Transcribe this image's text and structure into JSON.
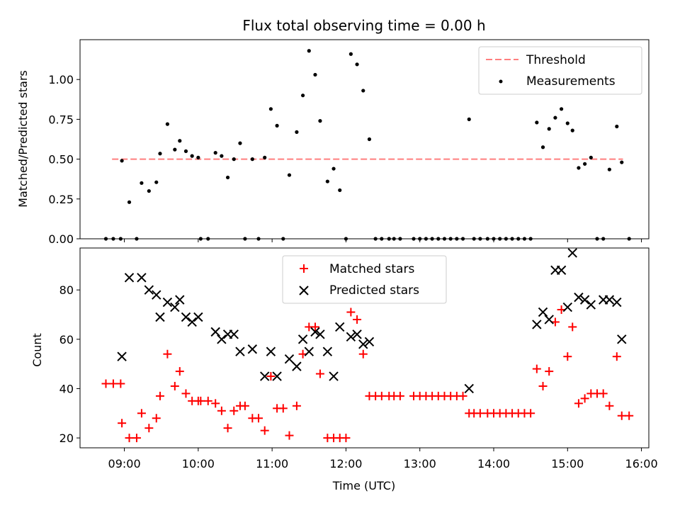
{
  "title": "Flux total observing time = 0.00 h",
  "chart_data": [
    {
      "type": "scatter",
      "ylabel": "Matched/Predicted stars",
      "xlabel": "",
      "xlim": [
        "08:24",
        "16:06"
      ],
      "ylim": [
        0,
        1.25
      ],
      "yticks": [
        0.0,
        0.25,
        0.5,
        0.75,
        1.0
      ],
      "ytick_labels": [
        "0.00",
        "0.25",
        "0.50",
        "0.75",
        "1.00"
      ],
      "legend_position": "upper right",
      "threshold": {
        "name": "Threshold",
        "y": 0.5,
        "x_start": "08:50",
        "x_end": "15:45",
        "color": "#ff7f7f"
      },
      "series": [
        {
          "name": "Measurements",
          "color": "#000000",
          "marker": "dot",
          "points": [
            [
              "08:45",
              0.0
            ],
            [
              "08:51",
              0.0
            ],
            [
              "08:57",
              0.0
            ],
            [
              "08:58",
              0.49
            ],
            [
              "09:04",
              0.23
            ],
            [
              "09:10",
              0.0
            ],
            [
              "09:14",
              0.35
            ],
            [
              "09:20",
              0.3
            ],
            [
              "09:26",
              0.355
            ],
            [
              "09:29",
              0.535
            ],
            [
              "09:35",
              0.72
            ],
            [
              "09:41",
              0.56
            ],
            [
              "09:45",
              0.615
            ],
            [
              "09:50",
              0.55
            ],
            [
              "09:55",
              0.52
            ],
            [
              "10:00",
              0.51
            ],
            [
              "10:02",
              0.0
            ],
            [
              "10:08",
              0.0
            ],
            [
              "10:14",
              0.54
            ],
            [
              "10:19",
              0.52
            ],
            [
              "10:24",
              0.385
            ],
            [
              "10:29",
              0.5
            ],
            [
              "10:34",
              0.6
            ],
            [
              "10:38",
              0.0
            ],
            [
              "10:44",
              0.5
            ],
            [
              "10:49",
              0.0
            ],
            [
              "10:54",
              0.51
            ],
            [
              "10:59",
              0.815
            ],
            [
              "11:04",
              0.71
            ],
            [
              "11:09",
              0.0
            ],
            [
              "11:14",
              0.4
            ],
            [
              "11:20",
              0.67
            ],
            [
              "11:25",
              0.9
            ],
            [
              "11:30",
              1.18
            ],
            [
              "11:35",
              1.03
            ],
            [
              "11:39",
              0.74
            ],
            [
              "11:45",
              0.36
            ],
            [
              "11:50",
              0.44
            ],
            [
              "11:55",
              0.305
            ],
            [
              "12:00",
              0.0
            ],
            [
              "12:04",
              1.16
            ],
            [
              "12:09",
              1.095
            ],
            [
              "12:14",
              0.93
            ],
            [
              "12:19",
              0.625
            ],
            [
              "12:24",
              0.0
            ],
            [
              "12:29",
              0.0
            ],
            [
              "12:35",
              0.0
            ],
            [
              "12:39",
              0.0
            ],
            [
              "12:44",
              0.0
            ],
            [
              "12:55",
              0.0
            ],
            [
              "13:00",
              0.0
            ],
            [
              "13:05",
              0.0
            ],
            [
              "13:10",
              0.0
            ],
            [
              "13:15",
              0.0
            ],
            [
              "13:20",
              0.0
            ],
            [
              "13:25",
              0.0
            ],
            [
              "13:30",
              0.0
            ],
            [
              "13:35",
              0.0
            ],
            [
              "13:40",
              0.75
            ],
            [
              "13:44",
              0.0
            ],
            [
              "13:49",
              0.0
            ],
            [
              "13:55",
              0.0
            ],
            [
              "14:00",
              0.0
            ],
            [
              "14:05",
              0.0
            ],
            [
              "14:10",
              0.0
            ],
            [
              "14:15",
              0.0
            ],
            [
              "14:20",
              0.0
            ],
            [
              "14:25",
              0.0
            ],
            [
              "14:30",
              0.0
            ],
            [
              "14:35",
              0.73
            ],
            [
              "14:40",
              0.575
            ],
            [
              "14:45",
              0.69
            ],
            [
              "14:50",
              0.76
            ],
            [
              "14:55",
              0.815
            ],
            [
              "15:00",
              0.725
            ],
            [
              "15:04",
              0.68
            ],
            [
              "15:09",
              0.445
            ],
            [
              "15:14",
              0.47
            ],
            [
              "15:19",
              0.51
            ],
            [
              "15:24",
              0.0
            ],
            [
              "15:29",
              0.0
            ],
            [
              "15:34",
              0.435
            ],
            [
              "15:40",
              0.705
            ],
            [
              "15:44",
              0.48
            ],
            [
              "15:50",
              0.0
            ]
          ]
        }
      ]
    },
    {
      "type": "scatter",
      "ylabel": "Count",
      "xlabel": "Time (UTC)",
      "xlim": [
        "08:24",
        "16:06"
      ],
      "ylim": [
        16,
        97
      ],
      "yticks": [
        20,
        40,
        60,
        80
      ],
      "ytick_labels": [
        "20",
        "40",
        "60",
        "80"
      ],
      "xticks": [
        "09:00",
        "10:00",
        "11:00",
        "12:00",
        "13:00",
        "14:00",
        "15:00",
        "16:00"
      ],
      "xtick_labels": [
        "09:00",
        "10:00",
        "11:00",
        "12:00",
        "13:00",
        "14:00",
        "15:00",
        "16:00"
      ],
      "legend_position": "upper center",
      "series": [
        {
          "name": "Matched stars",
          "color": "#ff0000",
          "marker": "plus",
          "points": [
            [
              "08:45",
              42
            ],
            [
              "08:51",
              42
            ],
            [
              "08:57",
              42
            ],
            [
              "08:58",
              26
            ],
            [
              "09:04",
              20
            ],
            [
              "09:10",
              20
            ],
            [
              "09:14",
              30
            ],
            [
              "09:20",
              24
            ],
            [
              "09:26",
              28
            ],
            [
              "09:29",
              37
            ],
            [
              "09:35",
              54
            ],
            [
              "09:41",
              41
            ],
            [
              "09:45",
              47
            ],
            [
              "09:50",
              38
            ],
            [
              "09:55",
              35
            ],
            [
              "10:00",
              35
            ],
            [
              "10:02",
              35
            ],
            [
              "10:08",
              35
            ],
            [
              "10:14",
              34
            ],
            [
              "10:19",
              31
            ],
            [
              "10:24",
              24
            ],
            [
              "10:29",
              31
            ],
            [
              "10:34",
              33
            ],
            [
              "10:38",
              33
            ],
            [
              "10:44",
              28
            ],
            [
              "10:49",
              28
            ],
            [
              "10:54",
              23
            ],
            [
              "10:59",
              45
            ],
            [
              "11:04",
              32
            ],
            [
              "11:09",
              32
            ],
            [
              "11:14",
              21
            ],
            [
              "11:20",
              33
            ],
            [
              "11:25",
              54
            ],
            [
              "11:30",
              65
            ],
            [
              "11:35",
              65
            ],
            [
              "11:39",
              46
            ],
            [
              "11:45",
              20
            ],
            [
              "11:50",
              20
            ],
            [
              "11:55",
              20
            ],
            [
              "12:00",
              20
            ],
            [
              "12:04",
              71
            ],
            [
              "12:09",
              68
            ],
            [
              "12:14",
              54
            ],
            [
              "12:19",
              37
            ],
            [
              "12:24",
              37
            ],
            [
              "12:29",
              37
            ],
            [
              "12:35",
              37
            ],
            [
              "12:39",
              37
            ],
            [
              "12:44",
              37
            ],
            [
              "12:55",
              37
            ],
            [
              "13:00",
              37
            ],
            [
              "13:05",
              37
            ],
            [
              "13:10",
              37
            ],
            [
              "13:15",
              37
            ],
            [
              "13:20",
              37
            ],
            [
              "13:25",
              37
            ],
            [
              "13:30",
              37
            ],
            [
              "13:35",
              37
            ],
            [
              "13:40",
              30
            ],
            [
              "13:44",
              30
            ],
            [
              "13:49",
              30
            ],
            [
              "13:55",
              30
            ],
            [
              "14:00",
              30
            ],
            [
              "14:05",
              30
            ],
            [
              "14:10",
              30
            ],
            [
              "14:15",
              30
            ],
            [
              "14:20",
              30
            ],
            [
              "14:25",
              30
            ],
            [
              "14:30",
              30
            ],
            [
              "14:35",
              48
            ],
            [
              "14:40",
              41
            ],
            [
              "14:45",
              47
            ],
            [
              "14:50",
              67
            ],
            [
              "14:55",
              72
            ],
            [
              "15:00",
              53
            ],
            [
              "15:04",
              65
            ],
            [
              "15:09",
              34
            ],
            [
              "15:14",
              36
            ],
            [
              "15:19",
              38
            ],
            [
              "15:24",
              38
            ],
            [
              "15:29",
              38
            ],
            [
              "15:34",
              33
            ],
            [
              "15:40",
              53
            ],
            [
              "15:44",
              29
            ],
            [
              "15:50",
              29
            ]
          ]
        },
        {
          "name": "Predicted stars",
          "color": "#000000",
          "marker": "x",
          "points": [
            [
              "08:58",
              53
            ],
            [
              "09:04",
              85
            ],
            [
              "09:14",
              85
            ],
            [
              "09:20",
              80
            ],
            [
              "09:26",
              78
            ],
            [
              "09:29",
              69
            ],
            [
              "09:35",
              75
            ],
            [
              "09:41",
              73
            ],
            [
              "09:45",
              76
            ],
            [
              "09:50",
              69
            ],
            [
              "09:55",
              67
            ],
            [
              "10:00",
              69
            ],
            [
              "10:14",
              63
            ],
            [
              "10:19",
              60
            ],
            [
              "10:24",
              62
            ],
            [
              "10:29",
              62
            ],
            [
              "10:34",
              55
            ],
            [
              "10:44",
              56
            ],
            [
              "10:54",
              45
            ],
            [
              "10:59",
              55
            ],
            [
              "11:04",
              45
            ],
            [
              "11:14",
              52
            ],
            [
              "11:20",
              49
            ],
            [
              "11:25",
              60
            ],
            [
              "11:30",
              55
            ],
            [
              "11:35",
              63
            ],
            [
              "11:39",
              62
            ],
            [
              "11:45",
              55
            ],
            [
              "11:50",
              45
            ],
            [
              "11:55",
              65
            ],
            [
              "12:04",
              61
            ],
            [
              "12:09",
              62
            ],
            [
              "12:14",
              58
            ],
            [
              "12:19",
              59
            ],
            [
              "13:40",
              40
            ],
            [
              "14:35",
              66
            ],
            [
              "14:40",
              71
            ],
            [
              "14:45",
              68
            ],
            [
              "14:50",
              88
            ],
            [
              "14:55",
              88
            ],
            [
              "15:00",
              73
            ],
            [
              "15:04",
              95
            ],
            [
              "15:09",
              77
            ],
            [
              "15:14",
              76
            ],
            [
              "15:19",
              74
            ],
            [
              "15:29",
              76
            ],
            [
              "15:34",
              76
            ],
            [
              "15:40",
              75
            ],
            [
              "15:44",
              60
            ]
          ]
        }
      ]
    }
  ]
}
